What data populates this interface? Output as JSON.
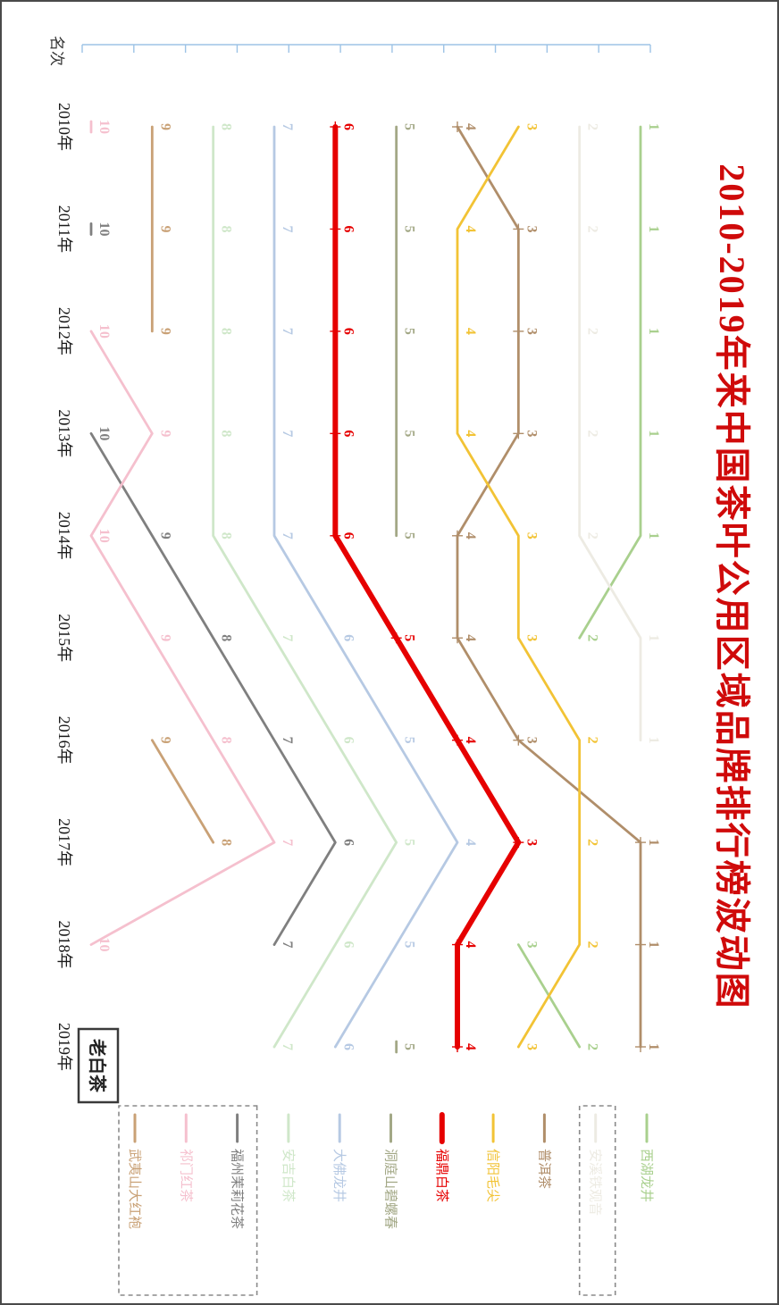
{
  "page": {
    "background": "#ffffff",
    "border_color": "#4a4a4a",
    "rotation_deg": 90
  },
  "chart_data": {
    "type": "line",
    "subtype": "bump-ranking-chart",
    "title": "2010-2019年来中国茶叶公用区域品牌排行榜波动图",
    "title_color": "#cf0a0a",
    "axis_label": "名次",
    "axis_color": "#9dc3e6",
    "years": [
      "2010年",
      "2011年",
      "2012年",
      "2013年",
      "2014年",
      "2015年",
      "2016年",
      "2017年",
      "2018年",
      "2019年"
    ],
    "rank_axis": {
      "min": 1,
      "max": 10,
      "note": "rank 1 is best; appears at right edge of rotated image"
    },
    "grid": "off",
    "legend_position": "right-of-plot (bottom of rotated image)",
    "annotation": {
      "text": "老白茶"
    },
    "series": [
      {
        "name": "西湖龙井",
        "color": "#a9d08e",
        "ranks": [
          1,
          1,
          1,
          1,
          1,
          2,
          null,
          null,
          3,
          2
        ]
      },
      {
        "name": "安溪铁观音",
        "color": "#edebe3",
        "ranks": [
          2,
          2,
          2,
          2,
          2,
          1,
          1,
          null,
          null,
          null
        ],
        "legend_dashed_box": true
      },
      {
        "name": "普洱茶",
        "color": "#b08e6a",
        "marker": "plus",
        "ranks": [
          4,
          3,
          3,
          3,
          4,
          4,
          3,
          1,
          1,
          1
        ]
      },
      {
        "name": "信阳毛尖",
        "color": "#f2c335",
        "ranks": [
          3,
          4,
          4,
          4,
          3,
          3,
          2,
          2,
          2,
          3
        ]
      },
      {
        "name": "福鼎白茶",
        "color": "#e60000",
        "width": 6,
        "marker": "plus",
        "ranks": [
          6,
          6,
          6,
          6,
          6,
          5,
          4,
          3,
          4,
          4
        ]
      },
      {
        "name": "洞庭山碧螺春",
        "color": "#a3a886",
        "ranks": [
          5,
          5,
          5,
          5,
          5,
          null,
          null,
          null,
          null,
          5
        ]
      },
      {
        "name": "大佛龙井",
        "color": "#b6c9e3",
        "ranks": [
          7,
          7,
          7,
          7,
          7,
          6,
          5,
          4,
          5,
          6
        ]
      },
      {
        "name": "安吉白茶",
        "color": "#cfe7c9",
        "ranks": [
          8,
          8,
          8,
          8,
          8,
          7,
          6,
          5,
          6,
          7
        ]
      },
      {
        "name": "福州茉莉花茶",
        "color": "#7f7f7f",
        "ranks": [
          null,
          10,
          null,
          10,
          9,
          8,
          7,
          6,
          7,
          null
        ],
        "legend_dashed_box": true
      },
      {
        "name": "祁门红茶",
        "color": "#f5c0ce",
        "ranks": [
          10,
          null,
          10,
          9,
          10,
          9,
          8,
          7,
          10,
          null
        ],
        "legend_dashed_box": true
      },
      {
        "name": "武夷山大红袍",
        "color": "#c9a176",
        "ranks": [
          9,
          9,
          9,
          null,
          null,
          null,
          9,
          8,
          null,
          null
        ],
        "legend_dashed_box": true
      }
    ]
  }
}
